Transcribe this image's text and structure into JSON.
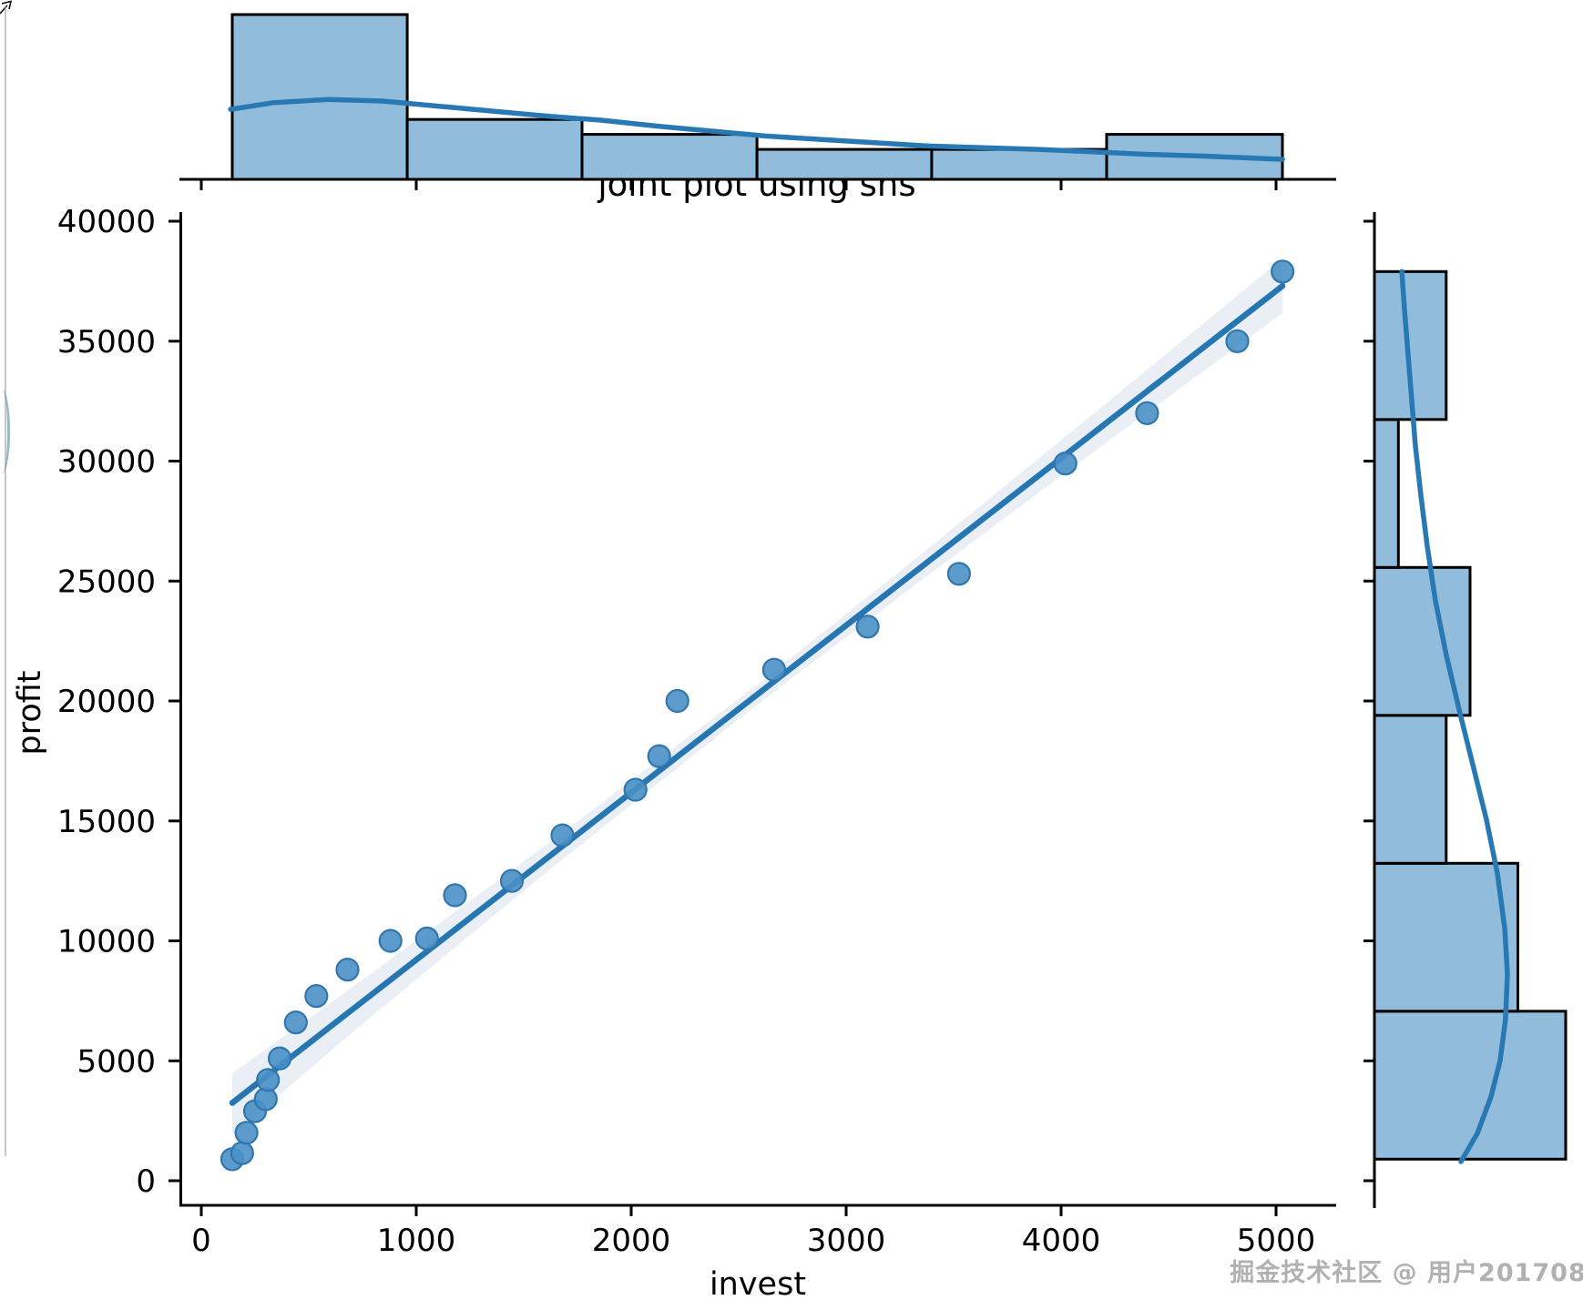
{
  "figure": {
    "title": "joint plot using sns",
    "xlabel": "invest",
    "ylabel": "profit",
    "watermark": "掘金技术社区 @ 用户201708"
  },
  "colors": {
    "bar_fill": "#91bcdc",
    "bar_edge": "#000000",
    "regression_line": "#2676b2",
    "kde_line": "#2878b4",
    "point_fill": "#4a90c6",
    "point_edge": "#3077ae",
    "band_fill": "#dce4f0",
    "axis": "#000000",
    "tick_label": "#000000"
  },
  "chart_data": {
    "type": "scatter",
    "subtype": "seaborn-jointplot-regression-with-marginal-histograms",
    "title": "joint plot using sns",
    "xlabel": "invest",
    "ylabel": "profit",
    "xlim": [
      -100,
      5280
    ],
    "ylim": [
      -1060,
      40380
    ],
    "grid": false,
    "legend": false,
    "x_ticks": [
      0,
      1000,
      2000,
      3000,
      4000,
      5000
    ],
    "y_ticks": [
      0,
      5000,
      10000,
      15000,
      20000,
      25000,
      30000,
      35000,
      40000
    ],
    "points": [
      [
        144,
        900
      ],
      [
        190,
        1150
      ],
      [
        210,
        2000
      ],
      [
        250,
        2900
      ],
      [
        300,
        3400
      ],
      [
        310,
        4200
      ],
      [
        365,
        5100
      ],
      [
        440,
        6600
      ],
      [
        535,
        7700
      ],
      [
        680,
        8800
      ],
      [
        880,
        10000
      ],
      [
        1050,
        10100
      ],
      [
        1180,
        11900
      ],
      [
        1445,
        12500
      ],
      [
        1680,
        14400
      ],
      [
        2020,
        16300
      ],
      [
        2130,
        17700
      ],
      [
        2215,
        20000
      ],
      [
        2665,
        21300
      ],
      [
        3100,
        23100
      ],
      [
        3525,
        25300
      ],
      [
        4020,
        29900
      ],
      [
        4400,
        32000
      ],
      [
        4820,
        35000
      ],
      [
        5030,
        37900
      ]
    ],
    "regression_line": [
      [
        144,
        3244
      ],
      [
        5030,
        37300
      ]
    ],
    "confidence_band": [
      [
        144,
        4478,
        1898
      ],
      [
        758,
        8425,
        6603
      ],
      [
        1606,
        14003,
        12865
      ],
      [
        2581,
        20645,
        19810
      ],
      [
        3301,
        25768,
        24706
      ],
      [
        4148,
        31954,
        30360
      ],
      [
        5030,
        38444,
        36167
      ]
    ],
    "top_hist": {
      "bin_edges": [
        144,
        958,
        1771,
        2585,
        3398,
        4212,
        5030
      ],
      "counts": [
        11,
        4,
        3,
        2,
        2,
        3
      ]
    },
    "right_hist": {
      "bin_edges": [
        900,
        7067,
        13233,
        19400,
        25567,
        31733,
        37900
      ],
      "counts": [
        8,
        6,
        3,
        4,
        1,
        3
      ]
    },
    "top_kde": [
      [
        136,
        0.42
      ],
      [
        335,
        0.46
      ],
      [
        589,
        0.48
      ],
      [
        843,
        0.47
      ],
      [
        1097,
        0.44
      ],
      [
        1352,
        0.41
      ],
      [
        1606,
        0.38
      ],
      [
        1860,
        0.355
      ],
      [
        2114,
        0.32
      ],
      [
        2369,
        0.29
      ],
      [
        2623,
        0.26
      ],
      [
        2877,
        0.24
      ],
      [
        3131,
        0.22
      ],
      [
        3386,
        0.2
      ],
      [
        3640,
        0.19
      ],
      [
        3894,
        0.18
      ],
      [
        4148,
        0.165
      ],
      [
        4403,
        0.15
      ],
      [
        4657,
        0.14
      ],
      [
        5030,
        0.12
      ]
    ],
    "right_kde": [
      [
        37900,
        0.148
      ],
      [
        36319,
        0.162
      ],
      [
        34421,
        0.181
      ],
      [
        32524,
        0.2
      ],
      [
        30626,
        0.219
      ],
      [
        28539,
        0.248
      ],
      [
        26452,
        0.281
      ],
      [
        24175,
        0.324
      ],
      [
        21898,
        0.381
      ],
      [
        19621,
        0.448
      ],
      [
        17344,
        0.519
      ],
      [
        15067,
        0.59
      ],
      [
        12790,
        0.648
      ],
      [
        10513,
        0.686
      ],
      [
        8615,
        0.7
      ],
      [
        6717,
        0.69
      ],
      [
        5010,
        0.662
      ],
      [
        3492,
        0.614
      ],
      [
        1973,
        0.543
      ],
      [
        797,
        0.457
      ]
    ]
  }
}
